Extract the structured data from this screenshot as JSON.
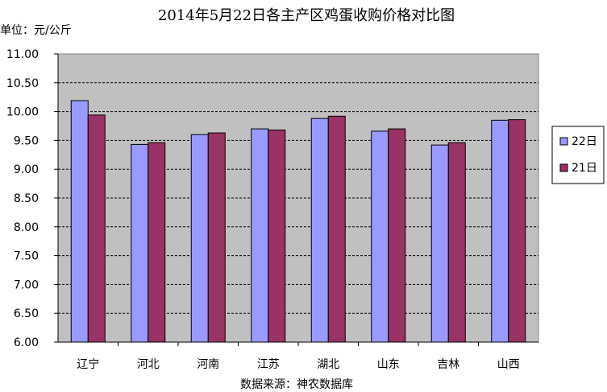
{
  "chart_data": {
    "type": "bar",
    "title": "2014年5月22日各主产区鸡蛋收购价格对比图",
    "unit_label": "单位：元/公斤",
    "source": "数据来源：神农数据库",
    "categories": [
      "辽宁",
      "河北",
      "河南",
      "江苏",
      "湖北",
      "山东",
      "吉林",
      "山西"
    ],
    "series": [
      {
        "name": "22日",
        "color": "#9999FF",
        "values": [
          10.19,
          9.43,
          9.6,
          9.7,
          9.88,
          9.66,
          9.42,
          9.85
        ]
      },
      {
        "name": "21日",
        "color": "#993366",
        "values": [
          9.94,
          9.46,
          9.63,
          9.68,
          9.92,
          9.7,
          9.46,
          9.86
        ]
      }
    ],
    "ylim": [
      6.0,
      11.0
    ],
    "yticks": [
      "6.00",
      "6.50",
      "7.00",
      "7.50",
      "8.00",
      "8.50",
      "9.00",
      "9.50",
      "10.00",
      "10.50",
      "11.00"
    ],
    "plot_background": "#C0C0C0",
    "grid": true,
    "legend_position": "right"
  }
}
